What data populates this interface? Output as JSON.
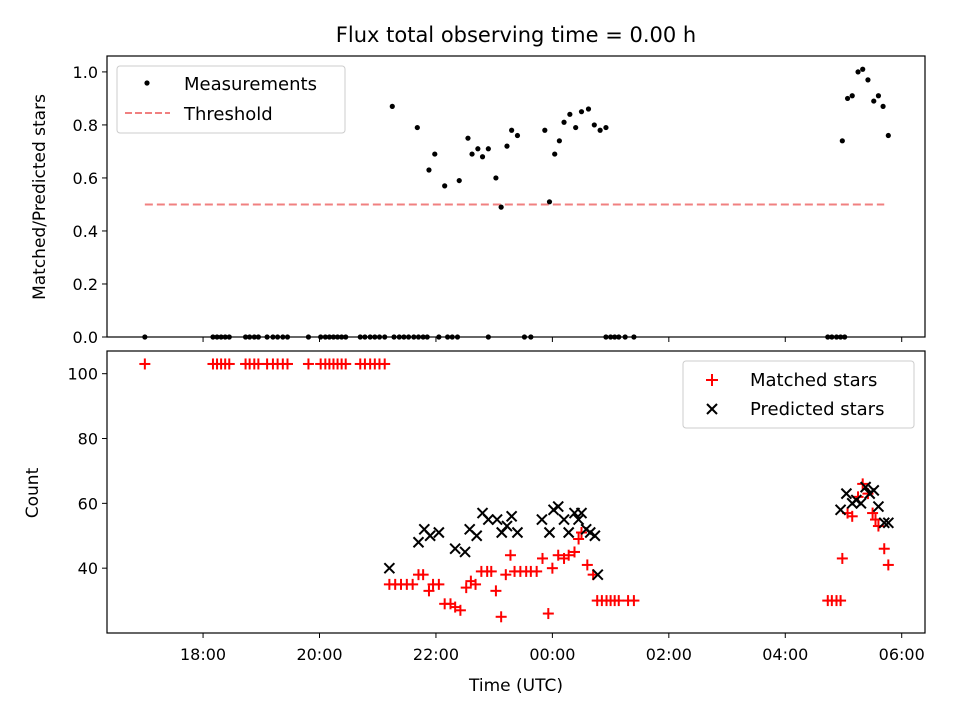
{
  "chart_data": [
    {
      "type": "scatter",
      "panel": "top",
      "title": "Flux total observing time = 0.00 h",
      "xlabel": "",
      "ylabel": "Matched/Predicted stars",
      "xlim": [
        16.35,
        30.4
      ],
      "ylim": [
        0.0,
        1.06
      ],
      "yticks": [
        0.0,
        0.2,
        0.4,
        0.6,
        0.8,
        1.0
      ],
      "ytick_labels": [
        "0.0",
        "0.2",
        "0.4",
        "0.6",
        "0.8",
        "1.0"
      ],
      "legend_position": "upper-left",
      "series": [
        {
          "name": "Measurements",
          "marker": "dot",
          "color": "#000000",
          "points": [
            [
              17.0,
              0
            ],
            [
              18.17,
              0
            ],
            [
              18.24,
              0
            ],
            [
              18.31,
              0
            ],
            [
              18.38,
              0
            ],
            [
              18.45,
              0
            ],
            [
              18.73,
              0
            ],
            [
              18.8,
              0
            ],
            [
              18.88,
              0
            ],
            [
              18.95,
              0
            ],
            [
              19.1,
              0
            ],
            [
              19.2,
              0
            ],
            [
              19.28,
              0
            ],
            [
              19.37,
              0
            ],
            [
              19.45,
              0
            ],
            [
              19.81,
              0
            ],
            [
              20.02,
              0
            ],
            [
              20.1,
              0
            ],
            [
              20.17,
              0
            ],
            [
              20.24,
              0
            ],
            [
              20.31,
              0
            ],
            [
              20.38,
              0
            ],
            [
              20.45,
              0
            ],
            [
              20.7,
              0
            ],
            [
              20.78,
              0
            ],
            [
              20.87,
              0
            ],
            [
              20.95,
              0
            ],
            [
              21.03,
              0
            ],
            [
              21.12,
              0
            ],
            [
              21.28,
              0
            ],
            [
              21.37,
              0
            ],
            [
              21.45,
              0
            ],
            [
              21.53,
              0
            ],
            [
              21.62,
              0
            ],
            [
              21.7,
              0
            ],
            [
              21.78,
              0
            ],
            [
              21.85,
              0
            ],
            [
              22.05,
              0
            ],
            [
              22.2,
              0
            ],
            [
              22.28,
              0
            ],
            [
              22.37,
              0
            ],
            [
              22.9,
              0
            ],
            [
              23.52,
              0
            ],
            [
              23.63,
              0
            ],
            [
              24.92,
              0
            ],
            [
              25.0,
              0
            ],
            [
              25.07,
              0
            ],
            [
              25.14,
              0
            ],
            [
              25.25,
              0
            ],
            [
              25.4,
              0
            ],
            [
              28.73,
              0
            ],
            [
              28.8,
              0
            ],
            [
              28.88,
              0
            ],
            [
              28.95,
              0
            ],
            [
              29.02,
              0
            ],
            [
              21.25,
              0.87
            ],
            [
              21.68,
              0.79
            ],
            [
              21.88,
              0.63
            ],
            [
              21.98,
              0.69
            ],
            [
              22.15,
              0.57
            ],
            [
              22.4,
              0.59
            ],
            [
              22.55,
              0.75
            ],
            [
              22.62,
              0.69
            ],
            [
              22.72,
              0.71
            ],
            [
              22.8,
              0.68
            ],
            [
              22.9,
              0.71
            ],
            [
              23.03,
              0.6
            ],
            [
              23.12,
              0.49
            ],
            [
              23.22,
              0.72
            ],
            [
              23.3,
              0.78
            ],
            [
              23.4,
              0.76
            ],
            [
              23.87,
              0.78
            ],
            [
              23.95,
              0.51
            ],
            [
              24.04,
              0.69
            ],
            [
              24.12,
              0.74
            ],
            [
              24.2,
              0.81
            ],
            [
              24.3,
              0.84
            ],
            [
              24.4,
              0.79
            ],
            [
              24.5,
              0.85
            ],
            [
              24.62,
              0.86
            ],
            [
              24.72,
              0.8
            ],
            [
              24.82,
              0.78
            ],
            [
              24.92,
              0.79
            ],
            [
              28.98,
              0.74
            ],
            [
              29.07,
              0.9
            ],
            [
              29.15,
              0.91
            ],
            [
              29.25,
              1.0
            ],
            [
              29.33,
              1.01
            ],
            [
              29.42,
              0.97
            ],
            [
              29.52,
              0.89
            ],
            [
              29.6,
              0.91
            ],
            [
              29.68,
              0.87
            ],
            [
              29.77,
              0.76
            ]
          ]
        },
        {
          "name": "Threshold",
          "style": "dashed",
          "color": "#f08080",
          "x": [
            17.0,
            29.7
          ],
          "y": [
            0.5,
            0.5
          ]
        }
      ]
    },
    {
      "type": "scatter",
      "panel": "bottom",
      "title": "",
      "xlabel": "Time (UTC)",
      "ylabel": "Count",
      "xlim": [
        16.35,
        30.4
      ],
      "ylim": [
        20,
        107
      ],
      "yticks": [
        40,
        60,
        80,
        100
      ],
      "ytick_labels": [
        "40",
        "60",
        "80",
        "100"
      ],
      "xticks": [
        18,
        20,
        22,
        24,
        26,
        28,
        30
      ],
      "xtick_labels": [
        "18:00",
        "20:00",
        "22:00",
        "00:00",
        "02:00",
        "04:00",
        "06:00"
      ],
      "legend_position": "upper-right",
      "series": [
        {
          "name": "Matched stars",
          "marker": "plus",
          "color": "#ff0000",
          "points": [
            [
              17.0,
              103
            ],
            [
              18.17,
              103
            ],
            [
              18.24,
              103
            ],
            [
              18.31,
              103
            ],
            [
              18.38,
              103
            ],
            [
              18.45,
              103
            ],
            [
              18.73,
              103
            ],
            [
              18.8,
              103
            ],
            [
              18.88,
              103
            ],
            [
              18.95,
              103
            ],
            [
              19.1,
              103
            ],
            [
              19.2,
              103
            ],
            [
              19.28,
              103
            ],
            [
              19.37,
              103
            ],
            [
              19.45,
              103
            ],
            [
              19.81,
              103
            ],
            [
              20.02,
              103
            ],
            [
              20.1,
              103
            ],
            [
              20.17,
              103
            ],
            [
              20.24,
              103
            ],
            [
              20.31,
              103
            ],
            [
              20.38,
              103
            ],
            [
              20.45,
              103
            ],
            [
              20.7,
              103
            ],
            [
              20.78,
              103
            ],
            [
              20.87,
              103
            ],
            [
              20.95,
              103
            ],
            [
              21.03,
              103
            ],
            [
              21.12,
              103
            ],
            [
              21.2,
              35
            ],
            [
              21.3,
              35
            ],
            [
              21.4,
              35
            ],
            [
              21.5,
              35
            ],
            [
              21.6,
              35
            ],
            [
              21.7,
              38
            ],
            [
              21.78,
              38
            ],
            [
              21.88,
              33
            ],
            [
              21.95,
              35
            ],
            [
              22.05,
              35
            ],
            [
              22.15,
              29
            ],
            [
              22.25,
              29
            ],
            [
              22.33,
              28
            ],
            [
              22.42,
              27
            ],
            [
              22.52,
              34
            ],
            [
              22.6,
              36
            ],
            [
              22.68,
              35
            ],
            [
              22.78,
              39
            ],
            [
              22.88,
              39
            ],
            [
              22.95,
              39
            ],
            [
              23.03,
              33
            ],
            [
              23.12,
              25
            ],
            [
              23.2,
              38
            ],
            [
              23.28,
              44
            ],
            [
              23.35,
              39
            ],
            [
              23.45,
              39
            ],
            [
              23.55,
              39
            ],
            [
              23.63,
              39
            ],
            [
              23.73,
              39
            ],
            [
              23.83,
              43
            ],
            [
              23.93,
              26
            ],
            [
              24.0,
              40
            ],
            [
              24.1,
              44
            ],
            [
              24.2,
              43
            ],
            [
              24.28,
              44
            ],
            [
              24.38,
              45
            ],
            [
              24.45,
              49
            ],
            [
              24.5,
              51
            ],
            [
              24.6,
              41
            ],
            [
              24.7,
              38
            ],
            [
              24.77,
              30
            ],
            [
              24.85,
              30
            ],
            [
              24.93,
              30
            ],
            [
              25.0,
              30
            ],
            [
              25.07,
              30
            ],
            [
              25.14,
              30
            ],
            [
              25.3,
              30
            ],
            [
              25.4,
              30
            ],
            [
              28.73,
              30
            ],
            [
              28.8,
              30
            ],
            [
              28.88,
              30
            ],
            [
              28.95,
              30
            ],
            [
              28.98,
              43
            ],
            [
              29.07,
              57
            ],
            [
              29.15,
              56
            ],
            [
              29.25,
              62
            ],
            [
              29.33,
              66
            ],
            [
              29.42,
              63
            ],
            [
              29.5,
              57
            ],
            [
              29.55,
              55
            ],
            [
              29.6,
              53
            ],
            [
              29.7,
              46
            ],
            [
              29.77,
              41
            ]
          ]
        },
        {
          "name": "Predicted stars",
          "marker": "x",
          "color": "#000000",
          "points": [
            [
              21.2,
              40
            ],
            [
              21.7,
              48
            ],
            [
              21.8,
              52
            ],
            [
              21.9,
              50
            ],
            [
              22.05,
              51
            ],
            [
              22.33,
              46
            ],
            [
              22.5,
              45
            ],
            [
              22.58,
              52
            ],
            [
              22.7,
              50
            ],
            [
              22.8,
              57
            ],
            [
              22.9,
              55
            ],
            [
              23.05,
              55
            ],
            [
              23.13,
              51
            ],
            [
              23.22,
              53
            ],
            [
              23.3,
              56
            ],
            [
              23.4,
              51
            ],
            [
              23.82,
              55
            ],
            [
              23.95,
              51
            ],
            [
              24.02,
              58
            ],
            [
              24.1,
              59
            ],
            [
              24.2,
              55
            ],
            [
              24.28,
              51
            ],
            [
              24.38,
              57
            ],
            [
              24.45,
              55
            ],
            [
              24.5,
              57
            ],
            [
              24.58,
              52
            ],
            [
              24.65,
              51
            ],
            [
              24.73,
              50
            ],
            [
              24.78,
              38
            ],
            [
              28.95,
              58
            ],
            [
              29.05,
              63
            ],
            [
              29.15,
              60
            ],
            [
              29.22,
              61
            ],
            [
              29.3,
              60
            ],
            [
              29.38,
              65
            ],
            [
              29.45,
              63
            ],
            [
              29.52,
              64
            ],
            [
              29.6,
              59
            ],
            [
              29.7,
              54
            ],
            [
              29.77,
              54
            ]
          ]
        }
      ]
    }
  ]
}
